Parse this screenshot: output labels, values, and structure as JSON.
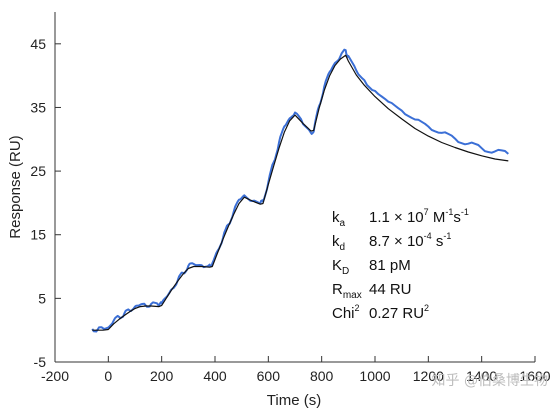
{
  "chart_data": {
    "type": "line",
    "title": "",
    "xlabel": "Time (s)",
    "ylabel": "Response (RU)",
    "xlim": [
      -200,
      1600
    ],
    "ylim": [
      -5,
      50
    ],
    "x_ticks": [
      -200,
      0,
      200,
      400,
      600,
      800,
      1000,
      1200,
      1400,
      1600
    ],
    "y_ticks": [
      -5,
      5,
      15,
      25,
      35,
      45
    ],
    "x_tick_labels": [
      "-200",
      "0",
      "200",
      "400",
      "600",
      "800",
      "1000",
      "1200",
      "1400",
      "1600"
    ],
    "y_tick_labels": [
      "-5",
      "5",
      "15",
      "25",
      "35",
      "45"
    ],
    "grid": false,
    "legend": "none",
    "series": [
      {
        "role": "measured",
        "color": "#3b6fd6",
        "x": [
          -60,
          -40,
          -20,
          0,
          20,
          40,
          60,
          80,
          100,
          120,
          140,
          160,
          190,
          200,
          220,
          240,
          260,
          280,
          300,
          320,
          350,
          380,
          390,
          410,
          430,
          450,
          470,
          490,
          510,
          540,
          570,
          580,
          600,
          620,
          640,
          660,
          680,
          700,
          730,
          760,
          770,
          790,
          810,
          830,
          850,
          870,
          890,
          900,
          930,
          960,
          1000,
          1050,
          1100,
          1150,
          1200,
          1250,
          1300,
          1350,
          1400,
          1450,
          1500
        ],
        "y": [
          0.2,
          0.1,
          0.3,
          0.4,
          1.5,
          2.1,
          2.6,
          3.1,
          3.7,
          4.0,
          3.9,
          4.1,
          3.8,
          4.2,
          5.3,
          6.5,
          7.8,
          9.0,
          10.1,
          10.4,
          10.2,
          10.3,
          10.5,
          12.5,
          14.5,
          16.6,
          18.6,
          20.5,
          21.2,
          20.3,
          19.9,
          20.2,
          23.2,
          26.4,
          29.5,
          32.0,
          33.3,
          34.2,
          32.4,
          31.0,
          31.2,
          35.2,
          38.3,
          40.6,
          42.0,
          43.0,
          44.0,
          43.1,
          40.8,
          39.3,
          37.6,
          35.9,
          34.5,
          33.1,
          32.0,
          31.0,
          30.1,
          29.3,
          28.6,
          28.1,
          27.7
        ]
      },
      {
        "role": "fit",
        "color": "#111111",
        "x": [
          -60,
          -40,
          -20,
          0,
          20,
          40,
          60,
          80,
          100,
          120,
          140,
          160,
          190,
          200,
          220,
          240,
          260,
          280,
          300,
          320,
          350,
          380,
          390,
          410,
          430,
          450,
          470,
          490,
          510,
          540,
          570,
          580,
          600,
          620,
          640,
          660,
          680,
          700,
          730,
          760,
          770,
          790,
          810,
          830,
          850,
          870,
          890,
          900,
          930,
          960,
          1000,
          1050,
          1100,
          1150,
          1200,
          1250,
          1300,
          1350,
          1400,
          1450,
          1500
        ],
        "y": [
          0.0,
          0.0,
          0.0,
          0.1,
          1.0,
          1.7,
          2.3,
          2.9,
          3.4,
          3.7,
          3.8,
          3.8,
          3.7,
          3.9,
          5.2,
          6.5,
          7.7,
          8.8,
          9.7,
          10.0,
          10.0,
          9.9,
          10.0,
          12.2,
          14.3,
          16.3,
          18.2,
          19.9,
          20.9,
          20.3,
          19.8,
          19.9,
          22.9,
          25.8,
          28.6,
          31.1,
          32.9,
          33.8,
          32.5,
          31.3,
          31.4,
          34.8,
          37.7,
          40.0,
          41.6,
          42.6,
          43.2,
          42.3,
          40.1,
          38.5,
          36.7,
          34.8,
          33.2,
          31.7,
          30.5,
          29.5,
          28.7,
          28.0,
          27.4,
          26.9,
          26.6
        ]
      }
    ],
    "annotations": [
      {
        "symbol": "k",
        "sub": "a",
        "value_parts": [
          "1.1 × 10",
          "7",
          " M",
          "-1",
          "s",
          "-1"
        ],
        "sup_mask": [
          false,
          true,
          false,
          true,
          false,
          true
        ]
      },
      {
        "symbol": "k",
        "sub": "d",
        "value_parts": [
          "8.7 × 10",
          "-4",
          " s",
          "-1"
        ],
        "sup_mask": [
          false,
          true,
          false,
          true
        ]
      },
      {
        "symbol": "K",
        "sub": "D",
        "value_parts": [
          "81 pM"
        ],
        "sup_mask": [
          false
        ]
      },
      {
        "symbol": "R",
        "sub": "max",
        "value_parts": [
          "44 RU"
        ],
        "sup_mask": [
          false
        ]
      },
      {
        "symbol": "Chi",
        "sup": "2",
        "value_parts": [
          "0.27 RU",
          "2"
        ],
        "sup_mask": [
          false,
          true
        ]
      }
    ],
    "watermark": "知乎 @伯桑博生物"
  }
}
